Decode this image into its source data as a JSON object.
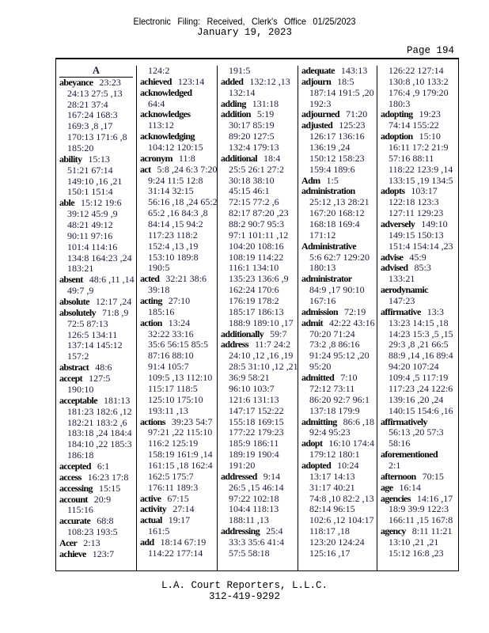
{
  "header": {
    "filing_stamp": "Electronic Filing: Received, Clerk's Office 01/25/2023",
    "date": "January 19, 2023",
    "page": "Page 194"
  },
  "footer": {
    "company": "L.A. Court Reporters, L.L.C.",
    "phone": "312-419-9292"
  },
  "columns": [
    [
      {
        "section": "A"
      },
      {
        "term": "abeyance",
        "lines": [
          "23:23",
          "24:13 27:5 ,13",
          "28:21 37:4",
          "167:24 168:3",
          "169:3 ,8 ,17",
          "170:13 171:6 ,8",
          "185:20"
        ]
      },
      {
        "term": "ability",
        "lines": [
          "15:13",
          "51:21 67:14",
          "149:10 ,16 ,21",
          "150:1 151:4"
        ]
      },
      {
        "term": "able",
        "lines": [
          "15:12 19:6",
          "39:12 45:9 ,9",
          "48:21 49:12",
          "90:11 97:16",
          "101:4 114:16",
          "134:8 164:23 ,24",
          "183:21"
        ]
      },
      {
        "term": "absent",
        "lines": [
          "48:6 ,11 ,14",
          "49:7 ,9"
        ]
      },
      {
        "term": "absolute",
        "lines": [
          "12:17 ,24"
        ]
      },
      {
        "term": "absolutely",
        "lines": [
          "71:8 ,9",
          "72:5 87:13",
          "126:5 134:11",
          "137:14 145:12",
          "157:2"
        ]
      },
      {
        "term": "abstract",
        "lines": [
          "48:6"
        ]
      },
      {
        "term": "accept",
        "lines": [
          "127:5",
          "190:10"
        ]
      },
      {
        "term": "acceptable",
        "lines": [
          "181:13",
          "181:23 182:6 ,12",
          "182:21 183:2 ,6",
          "183:18 ,24 184:4",
          "184:10 ,22 185:3",
          "186:18"
        ]
      },
      {
        "term": "accepted",
        "lines": [
          "6:1"
        ]
      },
      {
        "term": "access",
        "lines": [
          "16:23 17:8"
        ]
      },
      {
        "term": "accessing",
        "lines": [
          "15:15"
        ]
      },
      {
        "term": "account",
        "lines": [
          "20:9",
          "115:16"
        ]
      },
      {
        "term": "accurate",
        "lines": [
          "68:8",
          "108:23 193:5"
        ]
      },
      {
        "term": "Acer",
        "lines": [
          "2:13"
        ]
      },
      {
        "term": "achieve",
        "lines": [
          "123:7"
        ]
      }
    ],
    [
      {
        "term": "",
        "lines": [
          "124:2"
        ]
      },
      {
        "term": "achieved",
        "lines": [
          "123:14"
        ]
      },
      {
        "term": "acknowledged",
        "lines": [
          "",
          "64:4"
        ]
      },
      {
        "term": "acknowledges",
        "lines": [
          "",
          "113:12"
        ]
      },
      {
        "term": "acknowledging",
        "lines": [
          "",
          "104:12 120:15"
        ]
      },
      {
        "term": "acronym",
        "lines": [
          "11:8"
        ]
      },
      {
        "term": "act",
        "lines": [
          "5:8 ,24 6:3 7:20",
          "9:24 11:5 12:8",
          "31:14 32:15",
          "56:16 ,18 ,24 65:2",
          "65:2 ,16 84:3 ,8",
          "84:14 ,15 94:2",
          "117:23 118:2",
          "152:4 ,13 ,19",
          "153:10 189:8",
          "190:5"
        ]
      },
      {
        "term": "acted",
        "lines": [
          "32:21 38:6",
          "39:18"
        ]
      },
      {
        "term": "acting",
        "lines": [
          "27:10",
          "185:16"
        ]
      },
      {
        "term": "action",
        "lines": [
          "13:24",
          "32:22 33:16",
          "35:6 56:15 85:5",
          "87:16 88:10",
          "91:4 105:7",
          "109:5 ,13 112:10",
          "115:17 118:5",
          "125:10 175:10",
          "193:11 ,13"
        ]
      },
      {
        "term": "actions",
        "lines": [
          "39:23 54:7",
          "97:21 ,22 115:10",
          "116:2 125:19",
          "158:19 161:9 ,14",
          "161:15 ,18 162:4",
          "162:5 175:7",
          "176:11 189:3"
        ]
      },
      {
        "term": "active",
        "lines": [
          "67:15"
        ]
      },
      {
        "term": "activity",
        "lines": [
          "27:14"
        ]
      },
      {
        "term": "actual",
        "lines": [
          "19:17",
          "161:5"
        ]
      },
      {
        "term": "add",
        "lines": [
          "18:14 67:19",
          "114:22 177:14"
        ]
      }
    ],
    [
      {
        "term": "",
        "lines": [
          "191:5"
        ]
      },
      {
        "term": "added",
        "lines": [
          "132:12 ,13",
          "132:14"
        ]
      },
      {
        "term": "adding",
        "lines": [
          "131:18"
        ]
      },
      {
        "term": "addition",
        "lines": [
          "5:19",
          "30:17 85:19",
          "89:20 127:5",
          "132:4 179:13"
        ]
      },
      {
        "term": "additional",
        "lines": [
          "18:4",
          "25:5 26:1 27:2",
          "30:18 38:10",
          "45:15 46:1",
          "72:15 77:2 ,6",
          "82:17 87:20 ,23",
          "88:2 90:7 95:3",
          "97:1 101:11 ,12",
          "104:20 108:16",
          "108:19 114:22",
          "116:1 134:10",
          "135:23 136:6 ,9",
          "162:24 170:6",
          "176:19 178:2",
          "185:17 186:13",
          "188:9 189:10 ,17"
        ]
      },
      {
        "term": "additionally",
        "lines": [
          "59:7"
        ]
      },
      {
        "term": "address",
        "lines": [
          "11:7 24:2",
          "24:10 ,12 ,16 ,19",
          "28:5 31:10 ,12 ,21",
          "36:9 58:21",
          "96:10 103:7",
          "121:6 131:13",
          "147:17 152:22",
          "155:18 169:15",
          "177:22 179:23",
          "185:9 186:11",
          "189:19 190:4",
          "191:20"
        ]
      },
      {
        "term": "addressed",
        "lines": [
          "9:14",
          "26:5 ,15 46:14",
          "97:22 102:18",
          "104:4 118:13",
          "188:11 ,13"
        ]
      },
      {
        "term": "addressing",
        "lines": [
          "25:4",
          "33:3 35:6 41:4",
          "57:5 58:18"
        ]
      }
    ],
    [
      {
        "term": "adequate",
        "lines": [
          "143:13"
        ]
      },
      {
        "term": "adjourn",
        "lines": [
          "18:5",
          "187:14 191:5 ,20",
          "192:3"
        ]
      },
      {
        "term": "adjourned",
        "lines": [
          "71:20"
        ]
      },
      {
        "term": "adjusted",
        "lines": [
          "125:23",
          "126:17 136:16",
          "136:19 ,24",
          "150:12 158:23",
          "159:4 189:6"
        ]
      },
      {
        "term": "Adm",
        "lines": [
          "1:5"
        ]
      },
      {
        "term": "administration",
        "lines": [
          "",
          "25:12 ,13 28:21",
          "167:20 168:12",
          "168:18 169:4",
          "171:12"
        ]
      },
      {
        "term": "Administrative",
        "lines": [
          "",
          "5:6 62:7 129:20",
          "180:13"
        ]
      },
      {
        "term": "administrator",
        "lines": [
          "",
          "84:9 ,17 90:10",
          "167:16"
        ]
      },
      {
        "term": "admission",
        "lines": [
          "72:19"
        ]
      },
      {
        "term": "admit",
        "lines": [
          "42:22 43:16",
          "70:20 71:24",
          "73:2 ,8 86:16",
          "91:24 95:12 ,20",
          "95:20"
        ]
      },
      {
        "term": "admitted",
        "lines": [
          "7:10",
          "72:12 73:11",
          "86:20 92:7 96:1",
          "137:18 179:9"
        ]
      },
      {
        "term": "admitting",
        "lines": [
          "86:6 ,18",
          "92:4 95:23"
        ]
      },
      {
        "term": "adopt",
        "lines": [
          "16:10 174:4",
          "179:12 180:1"
        ]
      },
      {
        "term": "adopted",
        "lines": [
          "10:24",
          "13:17 14:13",
          "31:17 40:21",
          "74:8 ,10 82:2 ,13",
          "82:14 96:15",
          "102:6 ,12 104:17",
          "118:17 ,18",
          "123:20 124:24",
          "125:16 ,17"
        ]
      }
    ],
    [
      {
        "term": "",
        "lines": [
          "126:22 127:14",
          "130:8 ,10 133:2",
          "176:4 ,9 179:20",
          "180:3"
        ]
      },
      {
        "term": "adopting",
        "lines": [
          "19:23",
          "74:14 155:22"
        ]
      },
      {
        "term": "adoption",
        "lines": [
          "15:10",
          "16:11 17:2 21:9",
          "57:16 88:11",
          "118:22 123:9 ,14",
          "133:15 ,19 134:5"
        ]
      },
      {
        "term": "adopts",
        "lines": [
          "103:17",
          "122:18 123:3",
          "127:11 129:23"
        ]
      },
      {
        "term": "adversely",
        "lines": [
          "149:10",
          "149:15 150:13",
          "151:4 154:14 ,23"
        ]
      },
      {
        "term": "advise",
        "lines": [
          "45:9"
        ]
      },
      {
        "term": "advised",
        "lines": [
          "85:3",
          "133:21"
        ]
      },
      {
        "term": "aerodynamic",
        "lines": [
          "",
          "147:23"
        ]
      },
      {
        "term": "affirmative",
        "lines": [
          "13:3",
          "13:23 14:15 ,18",
          "14:23 15:3 ,5 ,15",
          "29:3 ,8 ,21 66:5",
          "88:9 ,14 ,16 89:4",
          "94:20 107:24",
          "109:4 ,5 117:19",
          "117:23 ,24 122:6",
          "139:16 ,20 ,24",
          "140:15 154:6 ,16"
        ]
      },
      {
        "term": "affirmatively",
        "lines": [
          "",
          "56:13 ,20 57:3",
          "58:16"
        ]
      },
      {
        "term": "aforementioned",
        "lines": [
          "",
          "2:1"
        ]
      },
      {
        "term": "afternoon",
        "lines": [
          "70:15"
        ]
      },
      {
        "term": "age",
        "lines": [
          "16:14"
        ]
      },
      {
        "term": "agencies",
        "lines": [
          "14:16 ,17",
          "18:9 39:9 122:3",
          "166:11 ,15 167:8"
        ]
      },
      {
        "term": "agency",
        "lines": [
          "8:11 11:21",
          "13:10 ,21 ,21",
          "15:12 16:8 ,23"
        ]
      }
    ]
  ]
}
